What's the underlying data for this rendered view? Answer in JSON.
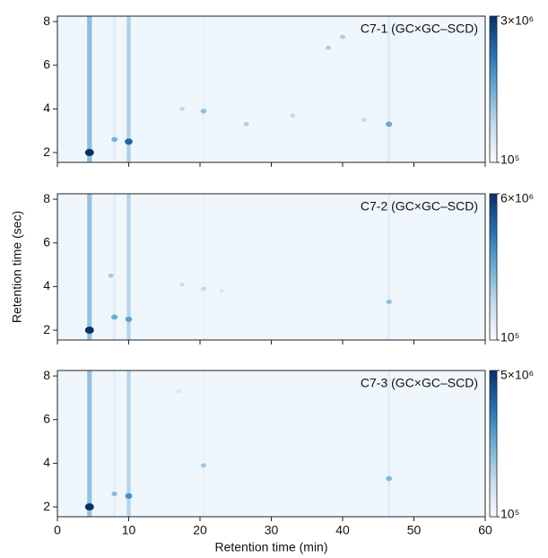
{
  "chart_data": [
    {
      "type": "heatmap",
      "title": "C7-1 (GC×GC–SCD)",
      "xlim": [
        0,
        60
      ],
      "xticks": [
        0,
        10,
        20,
        30,
        40,
        50,
        60
      ],
      "show_xtick_labels": false,
      "ylim": [
        1.55,
        8.25
      ],
      "yticks": [
        2,
        4,
        6,
        8
      ],
      "log_color": true,
      "colormap": [
        "#f7fbff",
        "#c6dbef",
        "#6baed6",
        "#2171b5",
        "#08306b"
      ],
      "colorbar": {
        "lim": [
          100000,
          3000000
        ],
        "ticks": [
          {
            "value": 100000,
            "label": "10⁵"
          },
          {
            "value": 3000000,
            "label": "3×10⁶"
          }
        ]
      },
      "streaks": {
        "x": [
          4.5,
          10,
          8,
          20.5,
          46.5
        ],
        "values": [
          900000,
          500000,
          180000,
          150000,
          200000
        ]
      },
      "spots": {
        "x": [
          4.5,
          10,
          8,
          20.5,
          46.5,
          33,
          17.5,
          26.5,
          38,
          40,
          43
        ],
        "y": [
          2.0,
          2.5,
          2.6,
          3.9,
          3.3,
          3.7,
          4.0,
          3.3,
          6.8,
          7.3,
          3.5
        ],
        "values": [
          3000000,
          1500000,
          500000,
          400000,
          600000,
          250000,
          250000,
          300000,
          300000,
          300000,
          250000
        ]
      }
    },
    {
      "type": "heatmap",
      "title": "C7-2 (GC×GC–SCD)",
      "ylabel": "Retention time (sec)",
      "xlim": [
        0,
        60
      ],
      "xticks": [
        0,
        10,
        20,
        30,
        40,
        50,
        60
      ],
      "show_xtick_labels": false,
      "ylim": [
        1.55,
        8.25
      ],
      "yticks": [
        2,
        4,
        6,
        8
      ],
      "log_color": true,
      "colormap": [
        "#f7fbff",
        "#c6dbef",
        "#6baed6",
        "#2171b5",
        "#08306b"
      ],
      "colorbar": {
        "lim": [
          100000,
          6000000
        ],
        "ticks": [
          {
            "value": 100000,
            "label": "10⁵"
          },
          {
            "value": 6000000,
            "label": "6×10⁶"
          }
        ]
      },
      "streaks": {
        "x": [
          4.5,
          10,
          8,
          20.5,
          46.5
        ],
        "values": [
          1200000,
          600000,
          200000,
          150000,
          200000
        ]
      },
      "spots": {
        "x": [
          4.5,
          10,
          8,
          7.5,
          20.5,
          17.5,
          46.5,
          23
        ],
        "y": [
          2.0,
          2.5,
          2.6,
          4.5,
          3.9,
          4.1,
          3.3,
          3.8
        ],
        "values": [
          6000000,
          1000000,
          800000,
          400000,
          300000,
          250000,
          500000,
          200000
        ]
      }
    },
    {
      "type": "heatmap",
      "title": "C7-3 (GC×GC–SCD)",
      "xlabel": "Retention time (min)",
      "xlim": [
        0,
        60
      ],
      "xticks": [
        0,
        10,
        20,
        30,
        40,
        50,
        60
      ],
      "show_xtick_labels": true,
      "ylim": [
        1.55,
        8.25
      ],
      "yticks": [
        2,
        4,
        6,
        8
      ],
      "log_color": true,
      "colormap": [
        "#f7fbff",
        "#c6dbef",
        "#6baed6",
        "#2171b5",
        "#08306b"
      ],
      "colorbar": {
        "lim": [
          100000,
          5000000
        ],
        "ticks": [
          {
            "value": 100000,
            "label": "10⁵"
          },
          {
            "value": 5000000,
            "label": "5×10⁶"
          }
        ]
      },
      "streaks": {
        "x": [
          4.5,
          10,
          8,
          20.5,
          46.5
        ],
        "values": [
          1100000,
          550000,
          180000,
          150000,
          200000
        ]
      },
      "spots": {
        "x": [
          4.5,
          10,
          8,
          20.5,
          46.5,
          17
        ],
        "y": [
          2.0,
          2.5,
          2.6,
          3.9,
          3.3,
          7.3
        ],
        "values": [
          5000000,
          1200000,
          500000,
          400000,
          600000,
          200000
        ]
      }
    }
  ]
}
